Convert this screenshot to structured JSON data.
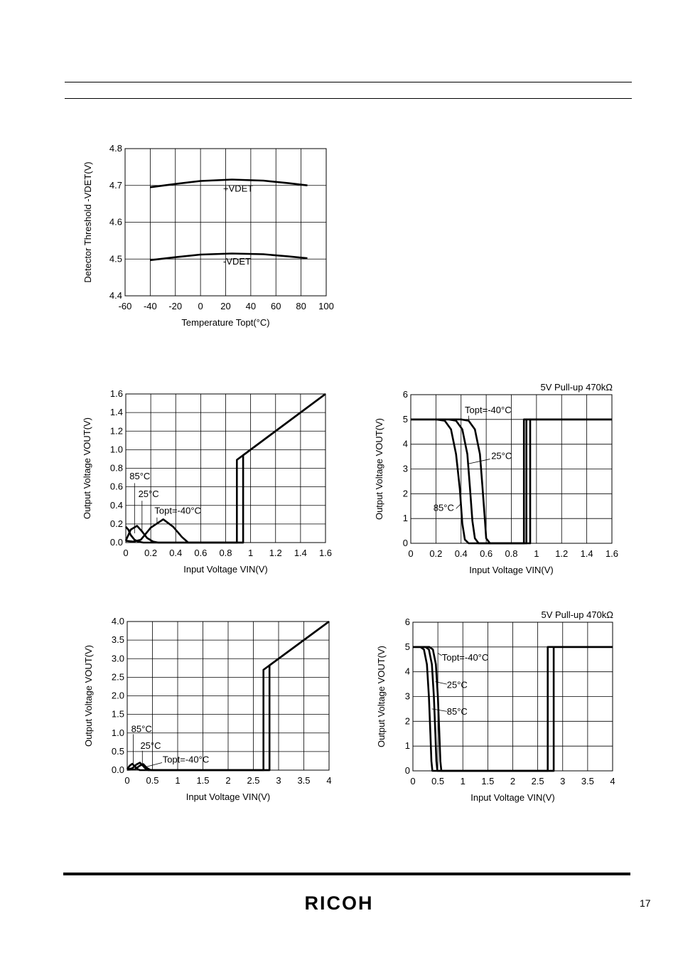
{
  "page": {
    "number": "17",
    "logo": "RICOH"
  },
  "chart_data": [
    {
      "id": "c1",
      "type": "line",
      "xlabel": "Temperature Topt(°C)",
      "ylabel": "Detector Threshold -VDET(V)",
      "xlim": [
        -60,
        100
      ],
      "ylim": [
        4.4,
        4.8
      ],
      "xticks": [
        -60,
        -40,
        -20,
        0,
        20,
        40,
        60,
        80,
        100
      ],
      "xtick_labels": [
        "-60",
        "-40",
        "-20",
        "0",
        "20",
        "40",
        "60",
        "80",
        "100"
      ],
      "yticks": [
        4.4,
        4.5,
        4.6,
        4.7,
        4.8
      ],
      "ytick_labels": [
        "4.4",
        "4.5",
        "4.6",
        "4.7",
        "4.8"
      ],
      "grid": true,
      "series": [
        {
          "name": "+VDET",
          "points": [
            [
              -40,
              4.695
            ],
            [
              -20,
              4.704
            ],
            [
              0,
              4.712
            ],
            [
              25,
              4.716
            ],
            [
              50,
              4.713
            ],
            [
              70,
              4.706
            ],
            [
              85,
              4.7
            ]
          ]
        },
        {
          "name": "-VDET",
          "points": [
            [
              -40,
              4.497
            ],
            [
              -20,
              4.505
            ],
            [
              0,
              4.512
            ],
            [
              25,
              4.515
            ],
            [
              50,
              4.513
            ],
            [
              70,
              4.507
            ],
            [
              85,
              4.502
            ]
          ]
        }
      ],
      "annotations": [
        {
          "text": "+VDET",
          "x": 18,
          "y": 4.683
        },
        {
          "text": "-VDET",
          "x": 18,
          "y": 4.485
        }
      ]
    },
    {
      "id": "c2",
      "type": "line",
      "xlabel": "Input Voltage VIN(V)",
      "ylabel": "Output Voltage VOUT(V)",
      "xlim": [
        0,
        1.6
      ],
      "ylim": [
        0,
        1.6
      ],
      "xticks": [
        0,
        0.2,
        0.4,
        0.6,
        0.8,
        1,
        1.2,
        1.4,
        1.6
      ],
      "xtick_labels": [
        "0",
        "0.2",
        "0.4",
        "0.6",
        "0.8",
        "1",
        "1.2",
        "1.4",
        "1.6"
      ],
      "yticks": [
        0,
        0.2,
        0.4,
        0.6,
        0.8,
        1.0,
        1.2,
        1.4,
        1.6
      ],
      "ytick_labels": [
        "0.0",
        "0.2",
        "0.4",
        "0.6",
        "0.8",
        "1.0",
        "1.2",
        "1.4",
        "1.6"
      ],
      "grid": true,
      "series": [
        {
          "name": "85°C",
          "points": [
            [
              0,
              0.17
            ],
            [
              0.02,
              0.14
            ],
            [
              0.04,
              0.08
            ],
            [
              0.07,
              0.03
            ],
            [
              0.1,
              0.01
            ],
            [
              0.14,
              0
            ],
            [
              0.89,
              0
            ],
            [
              0.89,
              0.89
            ],
            [
              1.6,
              1.6
            ]
          ]
        },
        {
          "name": "25°C",
          "points": [
            [
              0,
              0.02
            ],
            [
              0.04,
              0.14
            ],
            [
              0.09,
              0.18
            ],
            [
              0.13,
              0.12
            ],
            [
              0.17,
              0.05
            ],
            [
              0.22,
              0.01
            ],
            [
              0.26,
              0
            ],
            [
              0.94,
              0
            ],
            [
              0.94,
              0.94
            ],
            [
              1.6,
              1.6
            ]
          ]
        },
        {
          "name": "Topt=-40°C",
          "points": [
            [
              0,
              0.02
            ],
            [
              0.06,
              0.01
            ],
            [
              0.12,
              0.03
            ],
            [
              0.2,
              0.16
            ],
            [
              0.3,
              0.25
            ],
            [
              0.38,
              0.17
            ],
            [
              0.45,
              0.06
            ],
            [
              0.5,
              0
            ],
            [
              0.94,
              0
            ]
          ]
        }
      ],
      "annotations": [
        {
          "text": "85°C",
          "x": 0.03,
          "y": 0.68,
          "lx1": 0.07,
          "ly1": 0.64,
          "lx2": 0.07,
          "ly2": 0.1
        },
        {
          "text": "25°C",
          "x": 0.1,
          "y": 0.49,
          "lx1": 0.13,
          "ly1": 0.45,
          "lx2": 0.13,
          "ly2": 0.12
        },
        {
          "text": "Topt=-40°C",
          "x": 0.23,
          "y": 0.31,
          "lx1": 0.25,
          "ly1": 0.27,
          "lx2": 0.25,
          "ly2": 0.2
        }
      ]
    },
    {
      "id": "c3",
      "type": "line",
      "title": "5V Pull-up 470kΩ",
      "xlabel": "Input Voltage VIN(V)",
      "ylabel": "Output Voltage VOUT(V)",
      "xlim": [
        0,
        1.6
      ],
      "ylim": [
        0,
        6
      ],
      "xticks": [
        0,
        0.2,
        0.4,
        0.6,
        0.8,
        1,
        1.2,
        1.4,
        1.6
      ],
      "xtick_labels": [
        "0",
        "0.2",
        "0.4",
        "0.6",
        "0.8",
        "1",
        "1.2",
        "1.4",
        "1.6"
      ],
      "yticks": [
        0,
        1,
        2,
        3,
        4,
        5,
        6
      ],
      "ytick_labels": [
        "0",
        "1",
        "2",
        "3",
        "4",
        "5",
        "6"
      ],
      "grid": true,
      "series": [
        {
          "name": "85°C",
          "points": [
            [
              0,
              5
            ],
            [
              0.2,
              5
            ],
            [
              0.27,
              4.95
            ],
            [
              0.32,
              4.6
            ],
            [
              0.36,
              3.6
            ],
            [
              0.39,
              2.2
            ],
            [
              0.41,
              0.8
            ],
            [
              0.43,
              0.15
            ],
            [
              0.46,
              0
            ],
            [
              0.9,
              0
            ],
            [
              0.9,
              5
            ],
            [
              1.6,
              5
            ]
          ]
        },
        {
          "name": "25°C",
          "points": [
            [
              0,
              5
            ],
            [
              0.3,
              5
            ],
            [
              0.36,
              4.95
            ],
            [
              0.41,
              4.6
            ],
            [
              0.45,
              3.6
            ],
            [
              0.47,
              2.3
            ],
            [
              0.49,
              0.9
            ],
            [
              0.51,
              0.2
            ],
            [
              0.54,
              0
            ],
            [
              0.92,
              0
            ],
            [
              0.92,
              5
            ],
            [
              1.6,
              5
            ]
          ]
        },
        {
          "name": "Topt=-40°C",
          "points": [
            [
              0,
              5
            ],
            [
              0.4,
              5
            ],
            [
              0.46,
              4.95
            ],
            [
              0.51,
              4.6
            ],
            [
              0.55,
              3.6
            ],
            [
              0.57,
              2.3
            ],
            [
              0.59,
              0.9
            ],
            [
              0.6,
              0.2
            ],
            [
              0.63,
              0
            ],
            [
              0.95,
              0
            ],
            [
              0.95,
              5
            ],
            [
              1.6,
              5
            ]
          ]
        }
      ],
      "annotations": [
        {
          "text": "Topt=-40°C",
          "x": 0.43,
          "y": 5.25,
          "lx1": 0.46,
          "ly1": 5.15,
          "lx2": 0.46,
          "ly2": 5.0
        },
        {
          "text": "25°C",
          "x": 0.64,
          "y": 3.4,
          "lx1": 0.63,
          "ly1": 3.4,
          "lx2": 0.45,
          "ly2": 3.2
        },
        {
          "text": "85°C",
          "x": 0.18,
          "y": 1.3,
          "lx1": 0.36,
          "ly1": 1.4,
          "lx2": 0.4,
          "ly2": 1.6
        }
      ]
    },
    {
      "id": "c4",
      "type": "line",
      "xlabel": "Input Voltage VIN(V)",
      "ylabel": "Output Voltage VOUT(V)",
      "xlim": [
        0,
        4
      ],
      "ylim": [
        0,
        4
      ],
      "xticks": [
        0,
        0.5,
        1,
        1.5,
        2,
        2.5,
        3,
        3.5,
        4
      ],
      "xtick_labels": [
        "0",
        "0.5",
        "1",
        "1.5",
        "2",
        "2.5",
        "3",
        "3.5",
        "4"
      ],
      "yticks": [
        0,
        0.5,
        1,
        1.5,
        2,
        2.5,
        3,
        3.5,
        4
      ],
      "ytick_labels": [
        "0.0",
        "0.5",
        "1.0",
        "1.5",
        "2.0",
        "2.5",
        "3.0",
        "3.5",
        "4.0"
      ],
      "grid": true,
      "series": [
        {
          "name": "85°C",
          "points": [
            [
              0,
              0.03
            ],
            [
              0.05,
              0.12
            ],
            [
              0.1,
              0.17
            ],
            [
              0.15,
              0.1
            ],
            [
              0.2,
              0.03
            ],
            [
              0.25,
              0
            ],
            [
              2.7,
              0
            ],
            [
              2.7,
              2.7
            ],
            [
              4,
              4
            ]
          ]
        },
        {
          "name": "25°C",
          "points": [
            [
              0,
              0.02
            ],
            [
              0.1,
              0.05
            ],
            [
              0.18,
              0.15
            ],
            [
              0.25,
              0.2
            ],
            [
              0.31,
              0.12
            ],
            [
              0.37,
              0.03
            ],
            [
              0.42,
              0
            ],
            [
              2.82,
              0
            ],
            [
              2.82,
              2.82
            ],
            [
              4,
              4
            ]
          ]
        },
        {
          "name": "Topt=-40°C",
          "points": [
            [
              0,
              0.01
            ],
            [
              0.15,
              0.02
            ],
            [
              0.25,
              0.12
            ],
            [
              0.32,
              0.16
            ],
            [
              0.38,
              0.07
            ],
            [
              0.45,
              0.01
            ],
            [
              0.5,
              0
            ],
            [
              2.82,
              0
            ]
          ]
        }
      ],
      "annotations": [
        {
          "text": "85°C",
          "x": 0.08,
          "y": 1.02,
          "lx1": 0.12,
          "ly1": 0.97,
          "lx2": 0.12,
          "ly2": 0.17
        },
        {
          "text": "25°C",
          "x": 0.26,
          "y": 0.57,
          "lx1": 0.3,
          "ly1": 0.52,
          "lx2": 0.3,
          "ly2": 0.15
        },
        {
          "text": "Topt=-40°C",
          "x": 0.7,
          "y": 0.2,
          "lx1": 0.69,
          "ly1": 0.2,
          "lx2": 0.38,
          "ly2": 0.09
        }
      ]
    },
    {
      "id": "c5",
      "type": "line",
      "title": "5V Pull-up 470kΩ",
      "xlabel": "Input Voltage VIN(V)",
      "ylabel": "Output Voltage VOUT(V)",
      "xlim": [
        0,
        4
      ],
      "ylim": [
        0,
        6
      ],
      "xticks": [
        0,
        0.5,
        1,
        1.5,
        2,
        2.5,
        3,
        3.5,
        4
      ],
      "xtick_labels": [
        "0",
        "0.5",
        "1",
        "1.5",
        "2",
        "2.5",
        "3",
        "3.5",
        "4"
      ],
      "yticks": [
        0,
        1,
        2,
        3,
        4,
        5,
        6
      ],
      "ytick_labels": [
        "0",
        "1",
        "2",
        "3",
        "4",
        "5",
        "6"
      ],
      "grid": true,
      "series": [
        {
          "name": "85°C",
          "points": [
            [
              0,
              5
            ],
            [
              0.15,
              5
            ],
            [
              0.22,
              4.9
            ],
            [
              0.28,
              4.3
            ],
            [
              0.32,
              3
            ],
            [
              0.35,
              1.5
            ],
            [
              0.37,
              0.4
            ],
            [
              0.39,
              0
            ],
            [
              2.7,
              0
            ],
            [
              2.7,
              5
            ],
            [
              4,
              5
            ]
          ]
        },
        {
          "name": "25°C",
          "points": [
            [
              0,
              5
            ],
            [
              0.25,
              5
            ],
            [
              0.32,
              4.9
            ],
            [
              0.38,
              4.3
            ],
            [
              0.42,
              3
            ],
            [
              0.45,
              1.5
            ],
            [
              0.47,
              0.4
            ],
            [
              0.49,
              0
            ],
            [
              2.82,
              0
            ],
            [
              2.82,
              5
            ],
            [
              4,
              5
            ]
          ]
        },
        {
          "name": "Topt=-40°C",
          "points": [
            [
              0,
              5
            ],
            [
              0.33,
              5
            ],
            [
              0.4,
              4.9
            ],
            [
              0.46,
              4.3
            ],
            [
              0.5,
              3
            ],
            [
              0.53,
              1.5
            ],
            [
              0.55,
              0.4
            ],
            [
              0.57,
              0
            ],
            [
              2.82,
              0
            ]
          ]
        }
      ],
      "annotations": [
        {
          "text": "Topt=-40°C",
          "x": 0.58,
          "y": 4.45,
          "lx1": 0.58,
          "ly1": 4.65,
          "lx2": 0.5,
          "ly2": 4.75
        },
        {
          "text": "25°C",
          "x": 0.68,
          "y": 3.35,
          "lx1": 0.68,
          "ly1": 3.5,
          "lx2": 0.45,
          "ly2": 3.6
        },
        {
          "text": "85°C",
          "x": 0.68,
          "y": 2.27,
          "lx1": 0.68,
          "ly1": 2.4,
          "lx2": 0.38,
          "ly2": 2.5
        }
      ]
    }
  ]
}
